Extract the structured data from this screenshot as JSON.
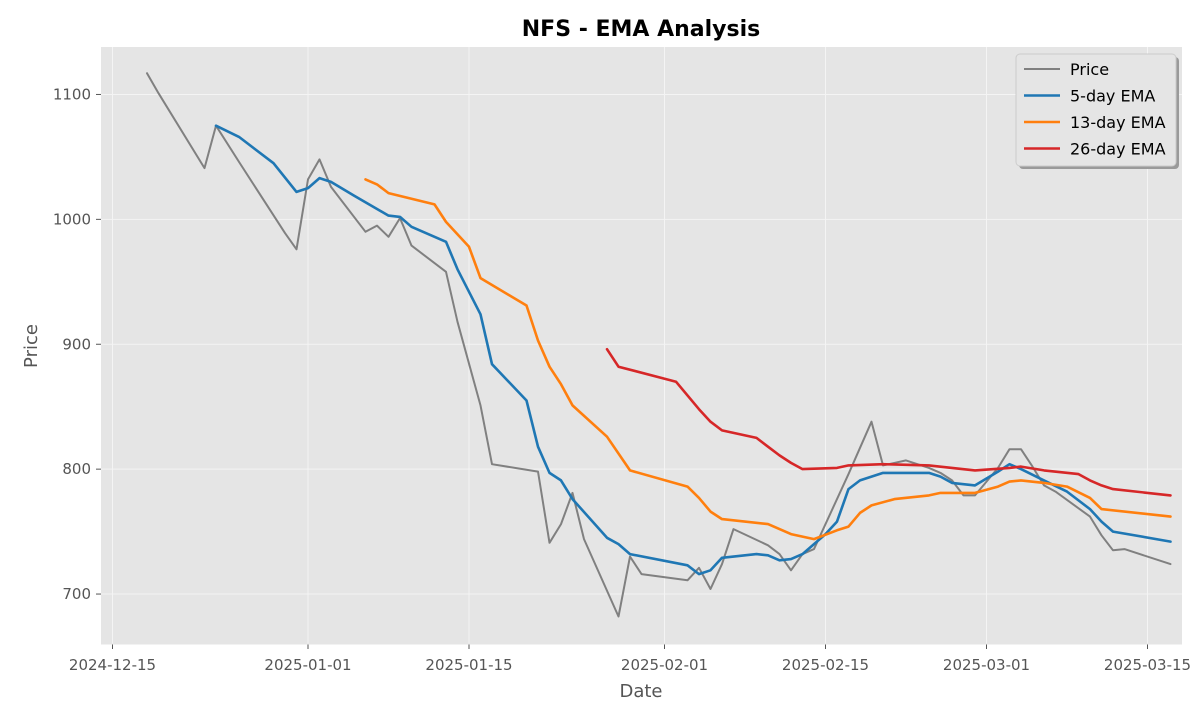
{
  "chart_data": {
    "type": "line",
    "title": "NFS - EMA Analysis",
    "xlabel": "Date",
    "ylabel": "Price",
    "xlim": [
      "2024-12-14",
      "2025-03-18"
    ],
    "ylim": [
      660,
      1138
    ],
    "grid": true,
    "legend_position": "top-right",
    "x_ticks": [
      "2024-12-15",
      "2025-01-01",
      "2025-01-15",
      "2025-02-01",
      "2025-02-15",
      "2025-03-01",
      "2025-03-15"
    ],
    "y_ticks": [
      700,
      800,
      900,
      1000,
      1100
    ],
    "colors": {
      "background": "#e5e5e5",
      "grid": "#f4f4f4",
      "Price": "#808080",
      "5-day EMA": "#1f77b4",
      "13-day EMA": "#ff7f0e",
      "26-day EMA": "#d62728"
    },
    "series": [
      {
        "name": "Price",
        "points": [
          [
            "2024-12-18",
            1117
          ],
          [
            "2024-12-19",
            1101
          ],
          [
            "2024-12-23",
            1041
          ],
          [
            "2024-12-24",
            1075
          ],
          [
            "2024-12-26",
            1046
          ],
          [
            "2024-12-30",
            989
          ],
          [
            "2024-12-31",
            976
          ],
          [
            "2025-01-01",
            1032
          ],
          [
            "2025-01-02",
            1048
          ],
          [
            "2025-01-03",
            1026
          ],
          [
            "2025-01-06",
            990
          ],
          [
            "2025-01-07",
            995
          ],
          [
            "2025-01-08",
            986
          ],
          [
            "2025-01-09",
            1001
          ],
          [
            "2025-01-10",
            979
          ],
          [
            "2025-01-13",
            958
          ],
          [
            "2025-01-14",
            918
          ],
          [
            "2025-01-16",
            851
          ],
          [
            "2025-01-17",
            804
          ],
          [
            "2025-01-21",
            798
          ],
          [
            "2025-01-22",
            741
          ],
          [
            "2025-01-23",
            756
          ],
          [
            "2025-01-24",
            781
          ],
          [
            "2025-01-25",
            744
          ],
          [
            "2025-01-28",
            682
          ],
          [
            "2025-01-29",
            730
          ],
          [
            "2025-01-30",
            716
          ],
          [
            "2025-02-03",
            711
          ],
          [
            "2025-02-04",
            721
          ],
          [
            "2025-02-05",
            704
          ],
          [
            "2025-02-06",
            724
          ],
          [
            "2025-02-07",
            752
          ],
          [
            "2025-02-10",
            739
          ],
          [
            "2025-02-11",
            732
          ],
          [
            "2025-02-12",
            719
          ],
          [
            "2025-02-13",
            732
          ],
          [
            "2025-02-14",
            736
          ],
          [
            "2025-02-17",
            796
          ],
          [
            "2025-02-19",
            838
          ],
          [
            "2025-02-20",
            803
          ],
          [
            "2025-02-22",
            807
          ],
          [
            "2025-02-24",
            801
          ],
          [
            "2025-02-25",
            797
          ],
          [
            "2025-02-26",
            791
          ],
          [
            "2025-02-27",
            779
          ],
          [
            "2025-02-28",
            779
          ],
          [
            "2025-03-02",
            801
          ],
          [
            "2025-03-03",
            816
          ],
          [
            "2025-03-04",
            816
          ],
          [
            "2025-03-05",
            802
          ],
          [
            "2025-03-06",
            787
          ],
          [
            "2025-03-07",
            782
          ],
          [
            "2025-03-10",
            762
          ],
          [
            "2025-03-11",
            747
          ],
          [
            "2025-03-12",
            735
          ],
          [
            "2025-03-13",
            736
          ],
          [
            "2025-03-17",
            724
          ]
        ]
      },
      {
        "name": "5-day EMA",
        "points": [
          [
            "2024-12-24",
            1075
          ],
          [
            "2024-12-26",
            1066
          ],
          [
            "2024-12-29",
            1045
          ],
          [
            "2024-12-31",
            1022
          ],
          [
            "2025-01-01",
            1025
          ],
          [
            "2025-01-02",
            1033
          ],
          [
            "2025-01-03",
            1030
          ],
          [
            "2025-01-05",
            1019
          ],
          [
            "2025-01-08",
            1003
          ],
          [
            "2025-01-09",
            1002
          ],
          [
            "2025-01-10",
            994
          ],
          [
            "2025-01-13",
            982
          ],
          [
            "2025-01-14",
            960
          ],
          [
            "2025-01-16",
            924
          ],
          [
            "2025-01-17",
            884
          ],
          [
            "2025-01-20",
            855
          ],
          [
            "2025-01-21",
            818
          ],
          [
            "2025-01-22",
            797
          ],
          [
            "2025-01-23",
            791
          ],
          [
            "2025-01-24",
            776
          ],
          [
            "2025-01-27",
            745
          ],
          [
            "2025-01-28",
            740
          ],
          [
            "2025-01-29",
            732
          ],
          [
            "2025-02-03",
            723
          ],
          [
            "2025-02-04",
            716
          ],
          [
            "2025-02-05",
            719
          ],
          [
            "2025-02-06",
            729
          ],
          [
            "2025-02-08",
            731
          ],
          [
            "2025-02-09",
            732
          ],
          [
            "2025-02-10",
            731
          ],
          [
            "2025-02-11",
            727
          ],
          [
            "2025-02-12",
            728
          ],
          [
            "2025-02-13",
            732
          ],
          [
            "2025-02-15",
            748
          ],
          [
            "2025-02-16",
            758
          ],
          [
            "2025-02-17",
            784
          ],
          [
            "2025-02-18",
            791
          ],
          [
            "2025-02-20",
            797
          ],
          [
            "2025-02-24",
            797
          ],
          [
            "2025-02-25",
            794
          ],
          [
            "2025-02-26",
            789
          ],
          [
            "2025-02-28",
            787
          ],
          [
            "2025-03-02",
            798
          ],
          [
            "2025-03-03",
            804
          ],
          [
            "2025-03-04",
            800
          ],
          [
            "2025-03-06",
            791
          ],
          [
            "2025-03-08",
            782
          ],
          [
            "2025-03-10",
            768
          ],
          [
            "2025-03-11",
            758
          ],
          [
            "2025-03-12",
            750
          ],
          [
            "2025-03-17",
            742
          ]
        ]
      },
      {
        "name": "13-day EMA",
        "points": [
          [
            "2025-01-06",
            1032
          ],
          [
            "2025-01-07",
            1028
          ],
          [
            "2025-01-08",
            1021
          ],
          [
            "2025-01-12",
            1012
          ],
          [
            "2025-01-13",
            998
          ],
          [
            "2025-01-15",
            978
          ],
          [
            "2025-01-16",
            953
          ],
          [
            "2025-01-20",
            931
          ],
          [
            "2025-01-21",
            903
          ],
          [
            "2025-01-22",
            882
          ],
          [
            "2025-01-23",
            868
          ],
          [
            "2025-01-24",
            851
          ],
          [
            "2025-01-27",
            826
          ],
          [
            "2025-01-29",
            799
          ],
          [
            "2025-02-03",
            786
          ],
          [
            "2025-02-04",
            777
          ],
          [
            "2025-02-05",
            766
          ],
          [
            "2025-02-06",
            760
          ],
          [
            "2025-02-10",
            756
          ],
          [
            "2025-02-11",
            752
          ],
          [
            "2025-02-12",
            748
          ],
          [
            "2025-02-14",
            744
          ],
          [
            "2025-02-16",
            751
          ],
          [
            "2025-02-17",
            754
          ],
          [
            "2025-02-18",
            765
          ],
          [
            "2025-02-19",
            771
          ],
          [
            "2025-02-21",
            776
          ],
          [
            "2025-02-24",
            779
          ],
          [
            "2025-02-25",
            781
          ],
          [
            "2025-02-28",
            781
          ],
          [
            "2025-03-02",
            786
          ],
          [
            "2025-03-03",
            790
          ],
          [
            "2025-03-04",
            791
          ],
          [
            "2025-03-06",
            789
          ],
          [
            "2025-03-08",
            786
          ],
          [
            "2025-03-10",
            777
          ],
          [
            "2025-03-11",
            768
          ],
          [
            "2025-03-17",
            762
          ]
        ]
      },
      {
        "name": "26-day EMA",
        "points": [
          [
            "2025-01-27",
            896
          ],
          [
            "2025-01-28",
            882
          ],
          [
            "2025-02-02",
            870
          ],
          [
            "2025-02-04",
            848
          ],
          [
            "2025-02-05",
            838
          ],
          [
            "2025-02-06",
            831
          ],
          [
            "2025-02-09",
            825
          ],
          [
            "2025-02-10",
            818
          ],
          [
            "2025-02-11",
            811
          ],
          [
            "2025-02-12",
            805
          ],
          [
            "2025-02-13",
            800
          ],
          [
            "2025-02-16",
            801
          ],
          [
            "2025-02-17",
            803
          ],
          [
            "2025-02-20",
            804
          ],
          [
            "2025-02-24",
            803
          ],
          [
            "2025-02-26",
            801
          ],
          [
            "2025-02-28",
            799
          ],
          [
            "2025-03-03",
            801
          ],
          [
            "2025-03-04",
            802
          ],
          [
            "2025-03-06",
            799
          ],
          [
            "2025-03-09",
            796
          ],
          [
            "2025-03-10",
            791
          ],
          [
            "2025-03-11",
            787
          ],
          [
            "2025-03-12",
            784
          ],
          [
            "2025-03-17",
            779
          ]
        ]
      }
    ]
  }
}
